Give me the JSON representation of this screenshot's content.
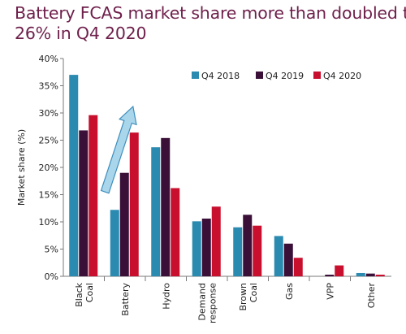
{
  "chart_data": {
    "type": "bar",
    "title_lines": [
      "Battery FCAS market share more than doubled to",
      "26% in Q4 2020"
    ],
    "ylabel": "Market share (%)",
    "xlabel": "",
    "ylim": [
      0,
      40
    ],
    "yticks": [
      0,
      5,
      10,
      15,
      20,
      25,
      30,
      35,
      40
    ],
    "ytick_labels": [
      "0%",
      "5%",
      "10%",
      "15%",
      "20%",
      "25%",
      "30%",
      "35%",
      "40%"
    ],
    "categories": [
      "Black Coal",
      "Battery",
      "Hydro",
      "Demand response",
      "Brown Coal",
      "Gas",
      "VPP",
      "Other"
    ],
    "series": [
      {
        "name": "Q4 2018",
        "color": "#2a8ab0",
        "values": [
          37.0,
          12.2,
          23.7,
          10.1,
          9.0,
          7.4,
          0.0,
          0.6
        ]
      },
      {
        "name": "Q4 2019",
        "color": "#3a1038",
        "values": [
          26.8,
          19.0,
          25.4,
          10.6,
          11.3,
          6.0,
          0.3,
          0.5
        ]
      },
      {
        "name": "Q4 2020",
        "color": "#c8102e",
        "values": [
          29.6,
          26.4,
          16.2,
          12.8,
          9.3,
          3.4,
          2.0,
          0.3
        ]
      }
    ],
    "legend_position": "top-right",
    "grid": false,
    "annotation": {
      "type": "arrow",
      "from": [
        "Black Coal",
        17
      ],
      "to": [
        "Battery",
        30
      ],
      "color": "#a9d6ea"
    }
  }
}
